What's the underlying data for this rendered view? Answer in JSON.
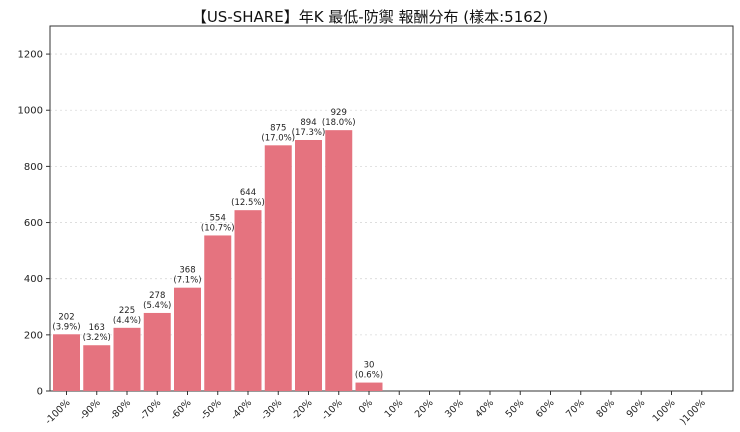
{
  "chart_data": {
    "type": "bar",
    "title": "【US-SHARE】年K 最低-防禦 報酬分布 (樣本:5162)",
    "xlabel": "",
    "ylabel": "",
    "ylim": [
      0,
      1300
    ],
    "yticks": [
      0,
      200,
      400,
      600,
      800,
      1000,
      1200
    ],
    "grid": "y-dotted",
    "bar_color": "#e5737f",
    "categories": [
      "-100%",
      "-90%",
      "-80%",
      "-70%",
      "-60%",
      "-50%",
      "-40%",
      "-30%",
      "-20%",
      "-10%",
      "0%",
      "10%",
      "20%",
      "30%",
      "40%",
      "50%",
      "60%",
      "70%",
      "80%",
      "90%",
      "100%",
      ")100%"
    ],
    "values": [
      202,
      163,
      225,
      278,
      368,
      554,
      644,
      875,
      894,
      929,
      30,
      0,
      0,
      0,
      0,
      0,
      0,
      0,
      0,
      0,
      0,
      0
    ],
    "data_labels": [
      {
        "index": 0,
        "count": "202",
        "pct": "(3.9%)"
      },
      {
        "index": 1,
        "count": "163",
        "pct": "(3.2%)"
      },
      {
        "index": 2,
        "count": "225",
        "pct": "(4.4%)"
      },
      {
        "index": 3,
        "count": "278",
        "pct": "(5.4%)"
      },
      {
        "index": 4,
        "count": "368",
        "pct": "(7.1%)"
      },
      {
        "index": 5,
        "count": "554",
        "pct": "(10.7%)"
      },
      {
        "index": 6,
        "count": "644",
        "pct": "(12.5%)"
      },
      {
        "index": 7,
        "count": "875",
        "pct": "(17.0%)"
      },
      {
        "index": 8,
        "count": "894",
        "pct": "(17.3%)"
      },
      {
        "index": 9,
        "count": "929",
        "pct": "(18.0%)"
      },
      {
        "index": 10,
        "count": "30",
        "pct": "(0.6%)"
      }
    ]
  }
}
